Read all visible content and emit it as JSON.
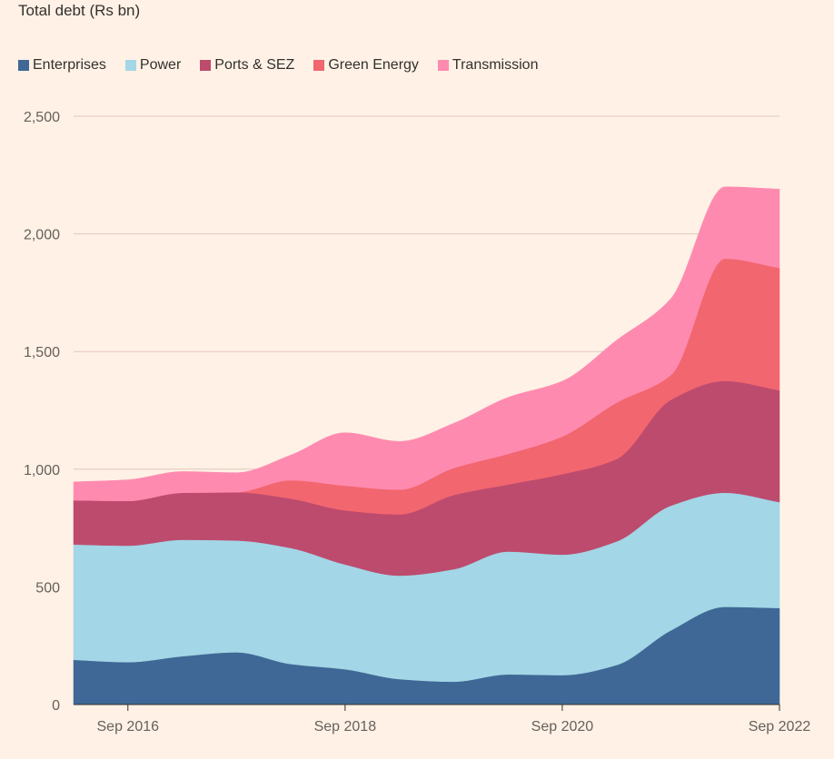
{
  "chart_data": {
    "type": "area",
    "stacked": true,
    "title": "Total debt (Rs bn)",
    "xlabel": "",
    "ylabel": "",
    "ylim": [
      0,
      2500
    ],
    "yticks": [
      0,
      500,
      1000,
      1500,
      2000,
      2500
    ],
    "ytick_labels": [
      "0",
      "500",
      "1,000",
      "1,500",
      "2,000",
      "2,500"
    ],
    "xlim": [
      "Mar 2016",
      "Sep 2022"
    ],
    "xticks": [
      "Sep 2016",
      "Sep 2018",
      "Sep 2020",
      "Sep 2022"
    ],
    "x": [
      "Mar 2016",
      "Sep 2016",
      "Mar 2017",
      "Sep 2017",
      "Mar 2018",
      "Sep 2018",
      "Mar 2019",
      "Sep 2019",
      "Mar 2020",
      "Sep 2020",
      "Mar 2021",
      "Sep 2021",
      "Mar 2022",
      "Sep 2022"
    ],
    "series": [
      {
        "name": "Enterprises",
        "color": "#3f6896",
        "values": [
          190,
          180,
          205,
          222,
          172,
          150,
          108,
          97,
          128,
          125,
          168,
          315,
          415,
          410
        ]
      },
      {
        "name": "Power",
        "color": "#a3d6e6",
        "values": [
          490,
          495,
          495,
          475,
          493,
          445,
          440,
          478,
          522,
          512,
          525,
          530,
          485,
          450
        ]
      },
      {
        "name": "Ports & SEZ",
        "color": "#bd4b6e",
        "values": [
          188,
          190,
          200,
          205,
          210,
          230,
          260,
          315,
          285,
          342,
          350,
          450,
          475,
          475
        ]
      },
      {
        "name": "Green Energy",
        "color": "#f2666f",
        "values": [
          0,
          0,
          0,
          0,
          78,
          105,
          105,
          115,
          130,
          160,
          240,
          105,
          520,
          520
        ]
      },
      {
        "name": "Transmission",
        "color": "#ff8ab0",
        "values": [
          78,
          90,
          90,
          83,
          107,
          225,
          205,
          190,
          240,
          235,
          265,
          325,
          305,
          335
        ]
      }
    ],
    "grid": true,
    "legend_position": "top-left"
  },
  "colors": {
    "background": "#fff1e5",
    "gridline": "#e2c8bd",
    "axis": "#33302e",
    "text": "#33302e",
    "tick_text": "#66605c"
  }
}
